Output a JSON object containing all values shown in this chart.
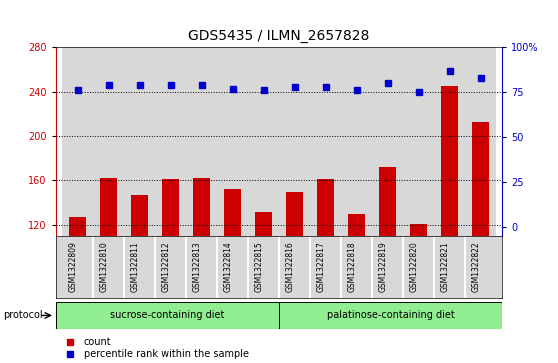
{
  "title": "GDS5435 / ILMN_2657828",
  "samples": [
    "GSM1322809",
    "GSM1322810",
    "GSM1322811",
    "GSM1322812",
    "GSM1322813",
    "GSM1322814",
    "GSM1322815",
    "GSM1322816",
    "GSM1322817",
    "GSM1322818",
    "GSM1322819",
    "GSM1322820",
    "GSM1322821",
    "GSM1322822"
  ],
  "counts": [
    127,
    162,
    147,
    161,
    162,
    152,
    132,
    150,
    161,
    130,
    172,
    121,
    245,
    213
  ],
  "percentile_ranks": [
    76,
    79,
    79,
    79,
    79,
    77,
    76,
    78,
    78,
    76,
    80,
    75,
    87,
    83
  ],
  "bar_color": "#cc0000",
  "dot_color": "#0000cc",
  "ylim_left": [
    110,
    280
  ],
  "ylim_right": [
    -5,
    100
  ],
  "yticks_left": [
    120,
    160,
    200,
    240,
    280
  ],
  "yticks_right": [
    0,
    25,
    50,
    75,
    100
  ],
  "yright_labels": [
    "0",
    "25",
    "50",
    "75",
    "100%"
  ],
  "grid_values": [
    120,
    160,
    200,
    240
  ],
  "sucrose_count": 7,
  "palatinose_count": 7,
  "sucrose_label": "sucrose-containing diet",
  "palatinose_label": "palatinose-containing diet",
  "protocol_label": "protocol",
  "legend_count": "count",
  "legend_percentile": "percentile rank within the sample",
  "col_bg_color": "#d8d8d8",
  "plot_bg_color": "#ffffff",
  "group_color": "#90ee90",
  "title_fontsize": 10,
  "tick_fontsize": 7,
  "label_fontsize": 7.5,
  "bar_bottom": 110
}
